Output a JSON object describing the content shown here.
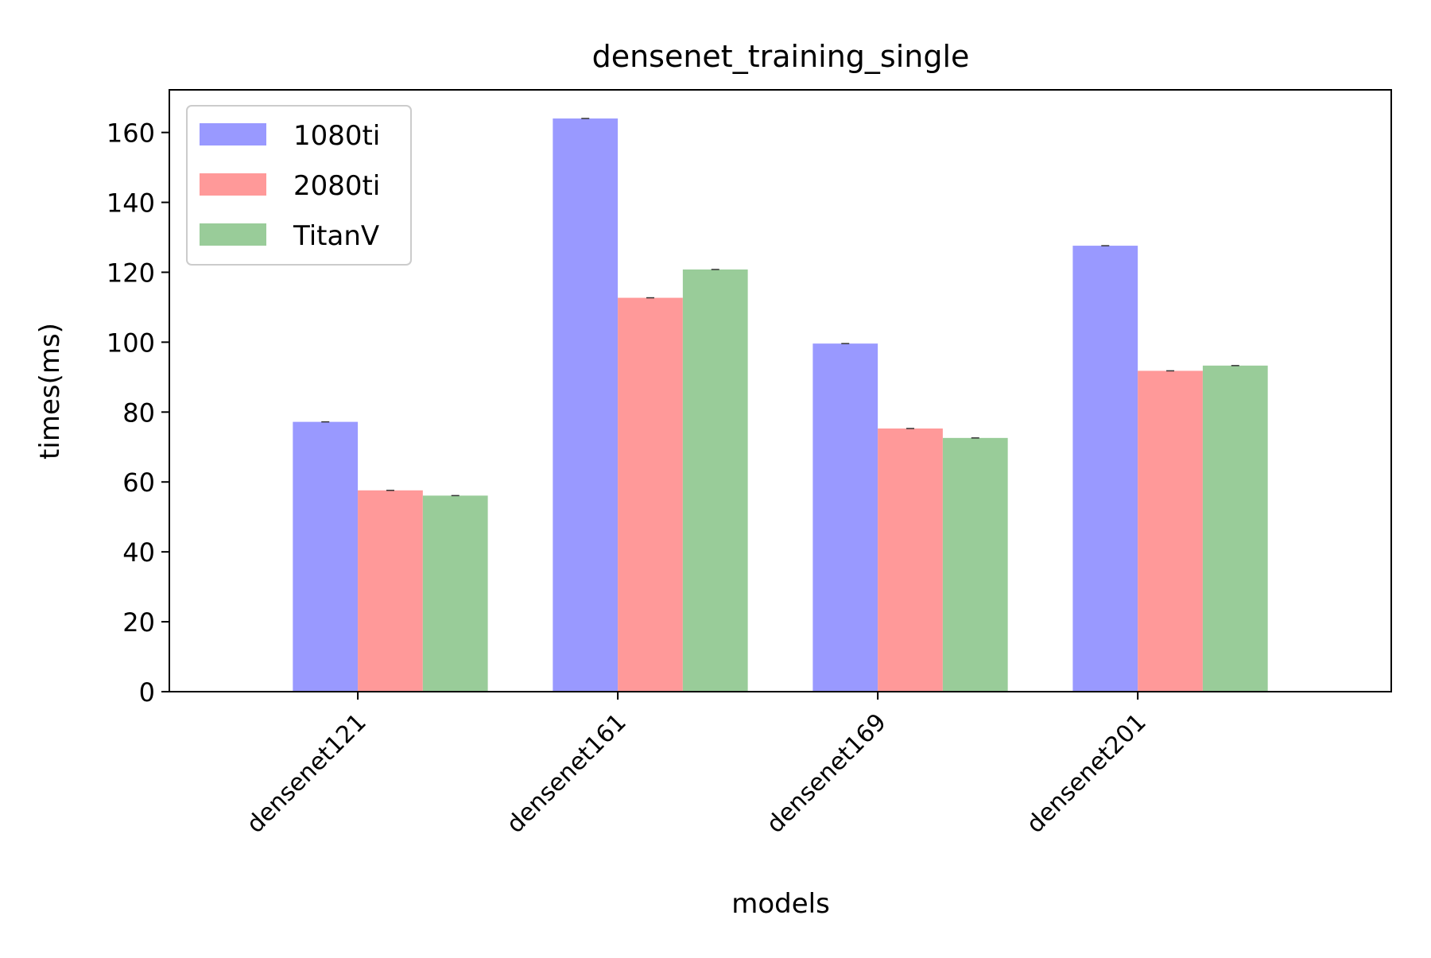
{
  "chart_data": {
    "type": "bar",
    "title": "densenet_training_single",
    "xlabel": "models",
    "ylabel": "times(ms)",
    "categories": [
      "densenet121",
      "densenet161",
      "densenet169",
      "densenet201"
    ],
    "series": [
      {
        "name": "1080ti",
        "color": "#9999ff",
        "values": [
          77.2,
          164.0,
          99.6,
          127.6
        ]
      },
      {
        "name": "2080ti",
        "color": "#ff9999",
        "values": [
          57.6,
          112.7,
          75.3,
          91.8
        ]
      },
      {
        "name": "TitanV",
        "color": "#99cc99",
        "values": [
          56.1,
          120.8,
          72.6,
          93.3
        ]
      }
    ],
    "ylim": [
      0,
      172.2
    ],
    "yticks": [
      0,
      20,
      40,
      60,
      80,
      100,
      120,
      140,
      160
    ],
    "grid": false,
    "legend_position": "upper-left"
  }
}
